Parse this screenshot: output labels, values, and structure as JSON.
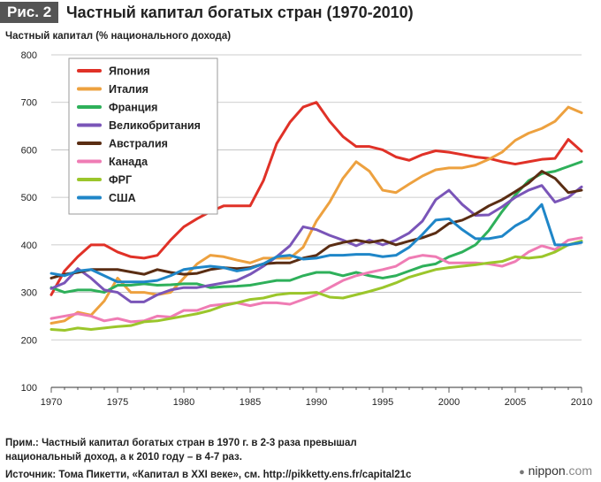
{
  "figure": {
    "label": "Рис. 2",
    "title": "Частный капитал богатых стран (1970-2010)"
  },
  "chart_data": {
    "type": "line",
    "title": "Частный капитал богатых стран (1970-2010)",
    "ylabel": "Частный капитал (% национального дохода)",
    "xlabel": "",
    "xlim": [
      1970,
      2010
    ],
    "ylim": [
      100,
      800
    ],
    "xticks": [
      1970,
      1975,
      1980,
      1985,
      1990,
      1995,
      2000,
      2005,
      2010
    ],
    "yticks": [
      100,
      200,
      300,
      400,
      500,
      600,
      700,
      800
    ],
    "grid": "horizontal",
    "legend_position": "top-left",
    "x": [
      1970,
      1971,
      1972,
      1973,
      1974,
      1975,
      1976,
      1977,
      1978,
      1979,
      1980,
      1981,
      1982,
      1983,
      1984,
      1985,
      1986,
      1987,
      1988,
      1989,
      1990,
      1991,
      1992,
      1993,
      1994,
      1995,
      1996,
      1997,
      1998,
      1999,
      2000,
      2001,
      2002,
      2003,
      2004,
      2005,
      2006,
      2007,
      2008,
      2009,
      2010
    ],
    "series": [
      {
        "name": "Япония",
        "color": "#e03127",
        "values": [
          295,
          345,
          375,
          400,
          400,
          385,
          375,
          372,
          378,
          410,
          438,
          455,
          470,
          482,
          482,
          482,
          535,
          613,
          658,
          690,
          700,
          660,
          628,
          607,
          607,
          600,
          585,
          578,
          590,
          598,
          595,
          590,
          585,
          582,
          575,
          570,
          575,
          580,
          582,
          622,
          597
        ]
      },
      {
        "name": "Италия",
        "color": "#eda13f",
        "values": [
          235,
          240,
          258,
          252,
          282,
          330,
          300,
          300,
          295,
          300,
          330,
          360,
          378,
          375,
          368,
          362,
          372,
          372,
          372,
          395,
          450,
          490,
          540,
          575,
          555,
          515,
          510,
          528,
          545,
          558,
          562,
          562,
          568,
          580,
          595,
          620,
          635,
          645,
          660,
          690,
          678
        ]
      },
      {
        "name": "Франция",
        "color": "#2eb05a",
        "values": [
          310,
          300,
          305,
          305,
          300,
          315,
          315,
          318,
          315,
          316,
          318,
          318,
          310,
          312,
          313,
          315,
          320,
          325,
          325,
          335,
          342,
          342,
          335,
          342,
          335,
          330,
          335,
          345,
          355,
          360,
          375,
          385,
          400,
          430,
          470,
          505,
          535,
          550,
          555,
          565,
          575
        ]
      },
      {
        "name": "Великобритания",
        "color": "#7a55b8",
        "values": [
          308,
          320,
          350,
          330,
          305,
          300,
          280,
          280,
          295,
          305,
          310,
          310,
          315,
          320,
          325,
          338,
          355,
          375,
          398,
          438,
          432,
          420,
          410,
          398,
          410,
          400,
          410,
          425,
          450,
          495,
          515,
          485,
          462,
          463,
          480,
          500,
          515,
          525,
          490,
          500,
          522
        ]
      },
      {
        "name": "Австралия",
        "color": "#5a2d13",
        "values": [
          330,
          338,
          342,
          348,
          348,
          348,
          343,
          338,
          348,
          342,
          338,
          340,
          348,
          352,
          350,
          352,
          360,
          362,
          362,
          372,
          378,
          398,
          405,
          410,
          405,
          410,
          400,
          408,
          415,
          425,
          445,
          452,
          465,
          482,
          495,
          512,
          530,
          555,
          540,
          510,
          515
        ]
      },
      {
        "name": "Канада",
        "color": "#ef7cb4",
        "values": [
          245,
          250,
          255,
          250,
          240,
          245,
          238,
          240,
          250,
          248,
          262,
          262,
          272,
          275,
          278,
          272,
          278,
          278,
          275,
          285,
          295,
          310,
          325,
          335,
          342,
          348,
          355,
          372,
          378,
          375,
          362,
          362,
          362,
          360,
          355,
          365,
          385,
          398,
          390,
          410,
          415
        ]
      },
      {
        "name": "ФРГ",
        "color": "#9bc62b",
        "values": [
          222,
          220,
          225,
          222,
          225,
          228,
          230,
          238,
          240,
          245,
          250,
          255,
          262,
          272,
          278,
          285,
          288,
          295,
          298,
          298,
          300,
          290,
          288,
          295,
          302,
          310,
          320,
          332,
          340,
          348,
          352,
          355,
          358,
          362,
          365,
          375,
          372,
          375,
          385,
          400,
          408
        ]
      },
      {
        "name": "США",
        "color": "#1f86c8",
        "values": [
          340,
          335,
          345,
          348,
          335,
          322,
          322,
          322,
          325,
          335,
          348,
          352,
          355,
          352,
          345,
          350,
          360,
          375,
          378,
          370,
          372,
          378,
          378,
          380,
          380,
          375,
          378,
          395,
          422,
          452,
          455,
          432,
          413,
          413,
          418,
          440,
          455,
          485,
          400,
          400,
          405
        ]
      }
    ],
    "notes": [
      "Прим.: Частный капитал богатых стран в 1970 г. в 2-3 раза превышал",
      "национальный доход, а к 2010 году – в 4-7 раз.",
      "Источник: Тома Пикетти, «Капитал в XXI веке», см. http://pikketty.ens.fr/capital21c"
    ]
  },
  "brand": {
    "dot": "●",
    "name": "nippon",
    "suffix": ".com"
  }
}
